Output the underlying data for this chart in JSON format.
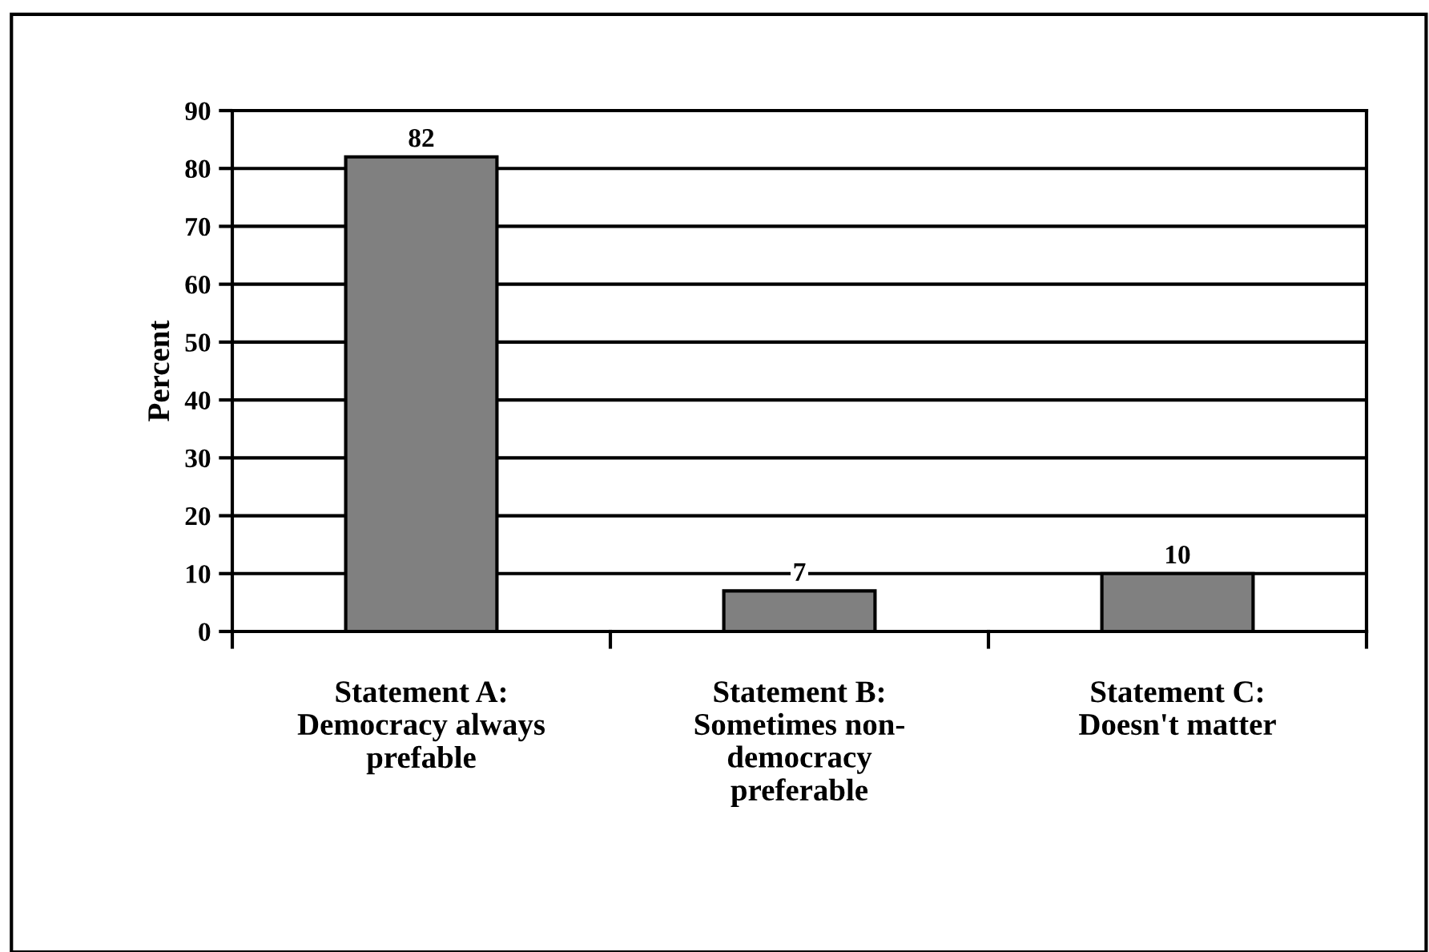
{
  "chart_data": {
    "type": "bar",
    "ylabel": "Percent",
    "categories": [
      "Statement A:\nDemocracy always\nprefable",
      "Statement B:\nSometimes non-\ndemocracy\npreferable",
      "Statement C:\nDoesn't matter"
    ],
    "values": [
      82,
      7,
      10
    ],
    "color": "#808080",
    "ylim": [
      0,
      90
    ],
    "yticks": [
      0,
      10,
      20,
      30,
      40,
      50,
      60,
      70,
      80,
      90
    ],
    "grid": "y",
    "data_labels": true,
    "legend": false
  }
}
